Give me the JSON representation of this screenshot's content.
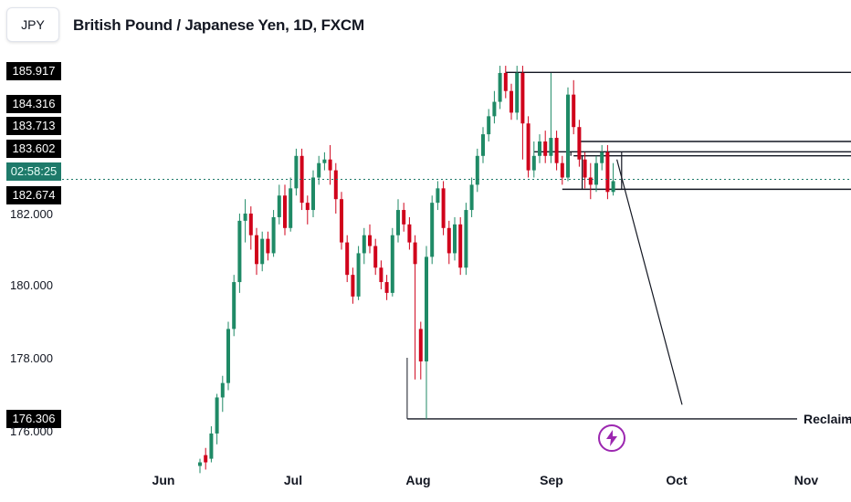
{
  "symbol": "JPY",
  "title": "British Pound / Japanese Yen, 1D, FXCM",
  "price_tags": [
    {
      "label": "185.917",
      "kind": "level"
    },
    {
      "label": "184.316",
      "kind": "level"
    },
    {
      "label": "183.713",
      "kind": "level"
    },
    {
      "label": "183.602",
      "kind": "level"
    },
    {
      "label": "02:58:25",
      "kind": "countdown"
    },
    {
      "label": "182.674",
      "kind": "level"
    },
    {
      "label": "176.306",
      "kind": "level"
    }
  ],
  "y_axis_labels": [
    "182.000",
    "180.000",
    "178.000",
    "176.000"
  ],
  "x_axis_labels": [
    "Jun",
    "Jul",
    "Aug",
    "Sep",
    "Oct",
    "Nov"
  ],
  "annotation": "Reclaim",
  "colors": {
    "up": "#1f8a66",
    "down": "#d0021b",
    "countdown": "#1e7a6a",
    "lines": "#131722",
    "bolt": "#9c27b0"
  },
  "icons": {
    "alert": "lightning-bolt-icon"
  },
  "chart_data": {
    "type": "candlestick",
    "title": "British Pound / Japanese Yen, 1D, FXCM",
    "interval": "1D",
    "ylim": [
      175.2,
      186.3
    ],
    "x_ticks": [
      "Jun",
      "Jul",
      "Aug",
      "Sep",
      "Oct",
      "Nov"
    ],
    "y_ticks": [
      176,
      178,
      180,
      182
    ],
    "current_price_approx": 182.95,
    "levels": [
      185.917,
      184.316,
      183.713,
      183.602,
      182.674,
      176.306
    ],
    "candles": [
      [
        175.0,
        175.1,
        174.8,
        175.2
      ],
      [
        175.3,
        175.1,
        174.9,
        175.5
      ],
      [
        175.2,
        175.9,
        175.1,
        176.1
      ],
      [
        175.9,
        176.9,
        175.6,
        177.0
      ],
      [
        176.9,
        177.3,
        176.5,
        177.5
      ],
      [
        177.3,
        178.8,
        177.1,
        179.0
      ],
      [
        178.8,
        180.1,
        178.6,
        180.3
      ],
      [
        180.1,
        181.8,
        179.8,
        182.0
      ],
      [
        181.8,
        182.0,
        181.2,
        182.4
      ],
      [
        182.0,
        181.4,
        181.0,
        182.2
      ],
      [
        181.4,
        180.6,
        180.3,
        181.6
      ],
      [
        180.6,
        181.3,
        180.4,
        181.5
      ],
      [
        181.3,
        180.9,
        180.7,
        181.5
      ],
      [
        180.9,
        181.9,
        180.8,
        182.1
      ],
      [
        181.9,
        182.5,
        181.7,
        182.8
      ],
      [
        182.5,
        181.6,
        181.4,
        182.8
      ],
      [
        181.6,
        182.7,
        181.5,
        183.0
      ],
      [
        182.7,
        183.6,
        182.5,
        183.8
      ],
      [
        183.6,
        182.3,
        182.1,
        183.8
      ],
      [
        182.3,
        182.1,
        181.7,
        182.5
      ],
      [
        182.1,
        183.0,
        181.9,
        183.2
      ],
      [
        183.0,
        183.4,
        182.8,
        183.6
      ],
      [
        183.4,
        183.5,
        183.2,
        183.7
      ],
      [
        183.5,
        183.2,
        182.8,
        183.9
      ],
      [
        183.2,
        182.4,
        182.0,
        183.4
      ],
      [
        182.4,
        181.2,
        181.0,
        182.6
      ],
      [
        181.2,
        180.3,
        180.1,
        181.4
      ],
      [
        180.3,
        179.7,
        179.5,
        180.5
      ],
      [
        179.7,
        180.9,
        179.6,
        181.1
      ],
      [
        180.9,
        181.4,
        180.6,
        181.6
      ],
      [
        181.4,
        181.1,
        180.9,
        181.7
      ],
      [
        181.1,
        180.5,
        180.3,
        181.3
      ],
      [
        180.5,
        180.1,
        179.9,
        180.7
      ],
      [
        180.1,
        179.8,
        179.6,
        180.3
      ],
      [
        179.8,
        181.4,
        179.7,
        181.6
      ],
      [
        181.4,
        182.1,
        181.2,
        182.4
      ],
      [
        182.1,
        181.7,
        181.5,
        182.3
      ],
      [
        181.7,
        181.2,
        181.0,
        181.9
      ],
      [
        181.2,
        180.6,
        177.4,
        181.4
      ],
      [
        178.8,
        177.9,
        177.4,
        179.0
      ],
      [
        177.9,
        180.8,
        176.3,
        181.1
      ],
      [
        180.8,
        182.3,
        180.6,
        182.5
      ],
      [
        182.3,
        182.7,
        182.1,
        182.9
      ],
      [
        182.7,
        181.6,
        181.4,
        182.9
      ],
      [
        181.6,
        180.9,
        180.6,
        181.8
      ],
      [
        180.9,
        181.7,
        180.7,
        181.9
      ],
      [
        181.7,
        180.5,
        180.3,
        181.9
      ],
      [
        180.5,
        182.1,
        180.3,
        182.3
      ],
      [
        182.1,
        182.8,
        181.9,
        183.0
      ],
      [
        182.8,
        183.6,
        182.6,
        183.8
      ],
      [
        183.6,
        184.2,
        183.4,
        184.4
      ],
      [
        184.2,
        184.7,
        184.0,
        184.9
      ],
      [
        184.7,
        185.1,
        184.5,
        185.4
      ],
      [
        185.1,
        185.9,
        184.9,
        186.1
      ],
      [
        185.9,
        185.4,
        185.2,
        186.1
      ],
      [
        185.4,
        184.8,
        184.6,
        185.6
      ],
      [
        184.8,
        185.9,
        184.6,
        186.1
      ],
      [
        185.9,
        184.5,
        183.5,
        186.1
      ],
      [
        184.5,
        183.2,
        183.0,
        184.7
      ],
      [
        183.2,
        183.6,
        183.0,
        184.0
      ],
      [
        183.6,
        184.0,
        183.4,
        184.2
      ],
      [
        184.0,
        183.6,
        183.4,
        184.3
      ],
      [
        183.6,
        184.1,
        183.4,
        185.9
      ],
      [
        184.1,
        183.4,
        183.2,
        184.3
      ],
      [
        183.4,
        183.0,
        182.8,
        183.6
      ],
      [
        183.0,
        185.3,
        182.9,
        185.5
      ],
      [
        185.3,
        184.4,
        184.2,
        185.7
      ],
      [
        184.4,
        183.5,
        183.3,
        184.6
      ],
      [
        183.5,
        183.0,
        182.7,
        183.7
      ],
      [
        183.0,
        182.8,
        182.4,
        183.4
      ],
      [
        182.8,
        183.4,
        182.6,
        183.6
      ],
      [
        183.4,
        183.7,
        183.2,
        183.9
      ],
      [
        183.7,
        182.6,
        182.4,
        183.9
      ],
      [
        182.6,
        182.9,
        182.5,
        183.4
      ]
    ]
  }
}
